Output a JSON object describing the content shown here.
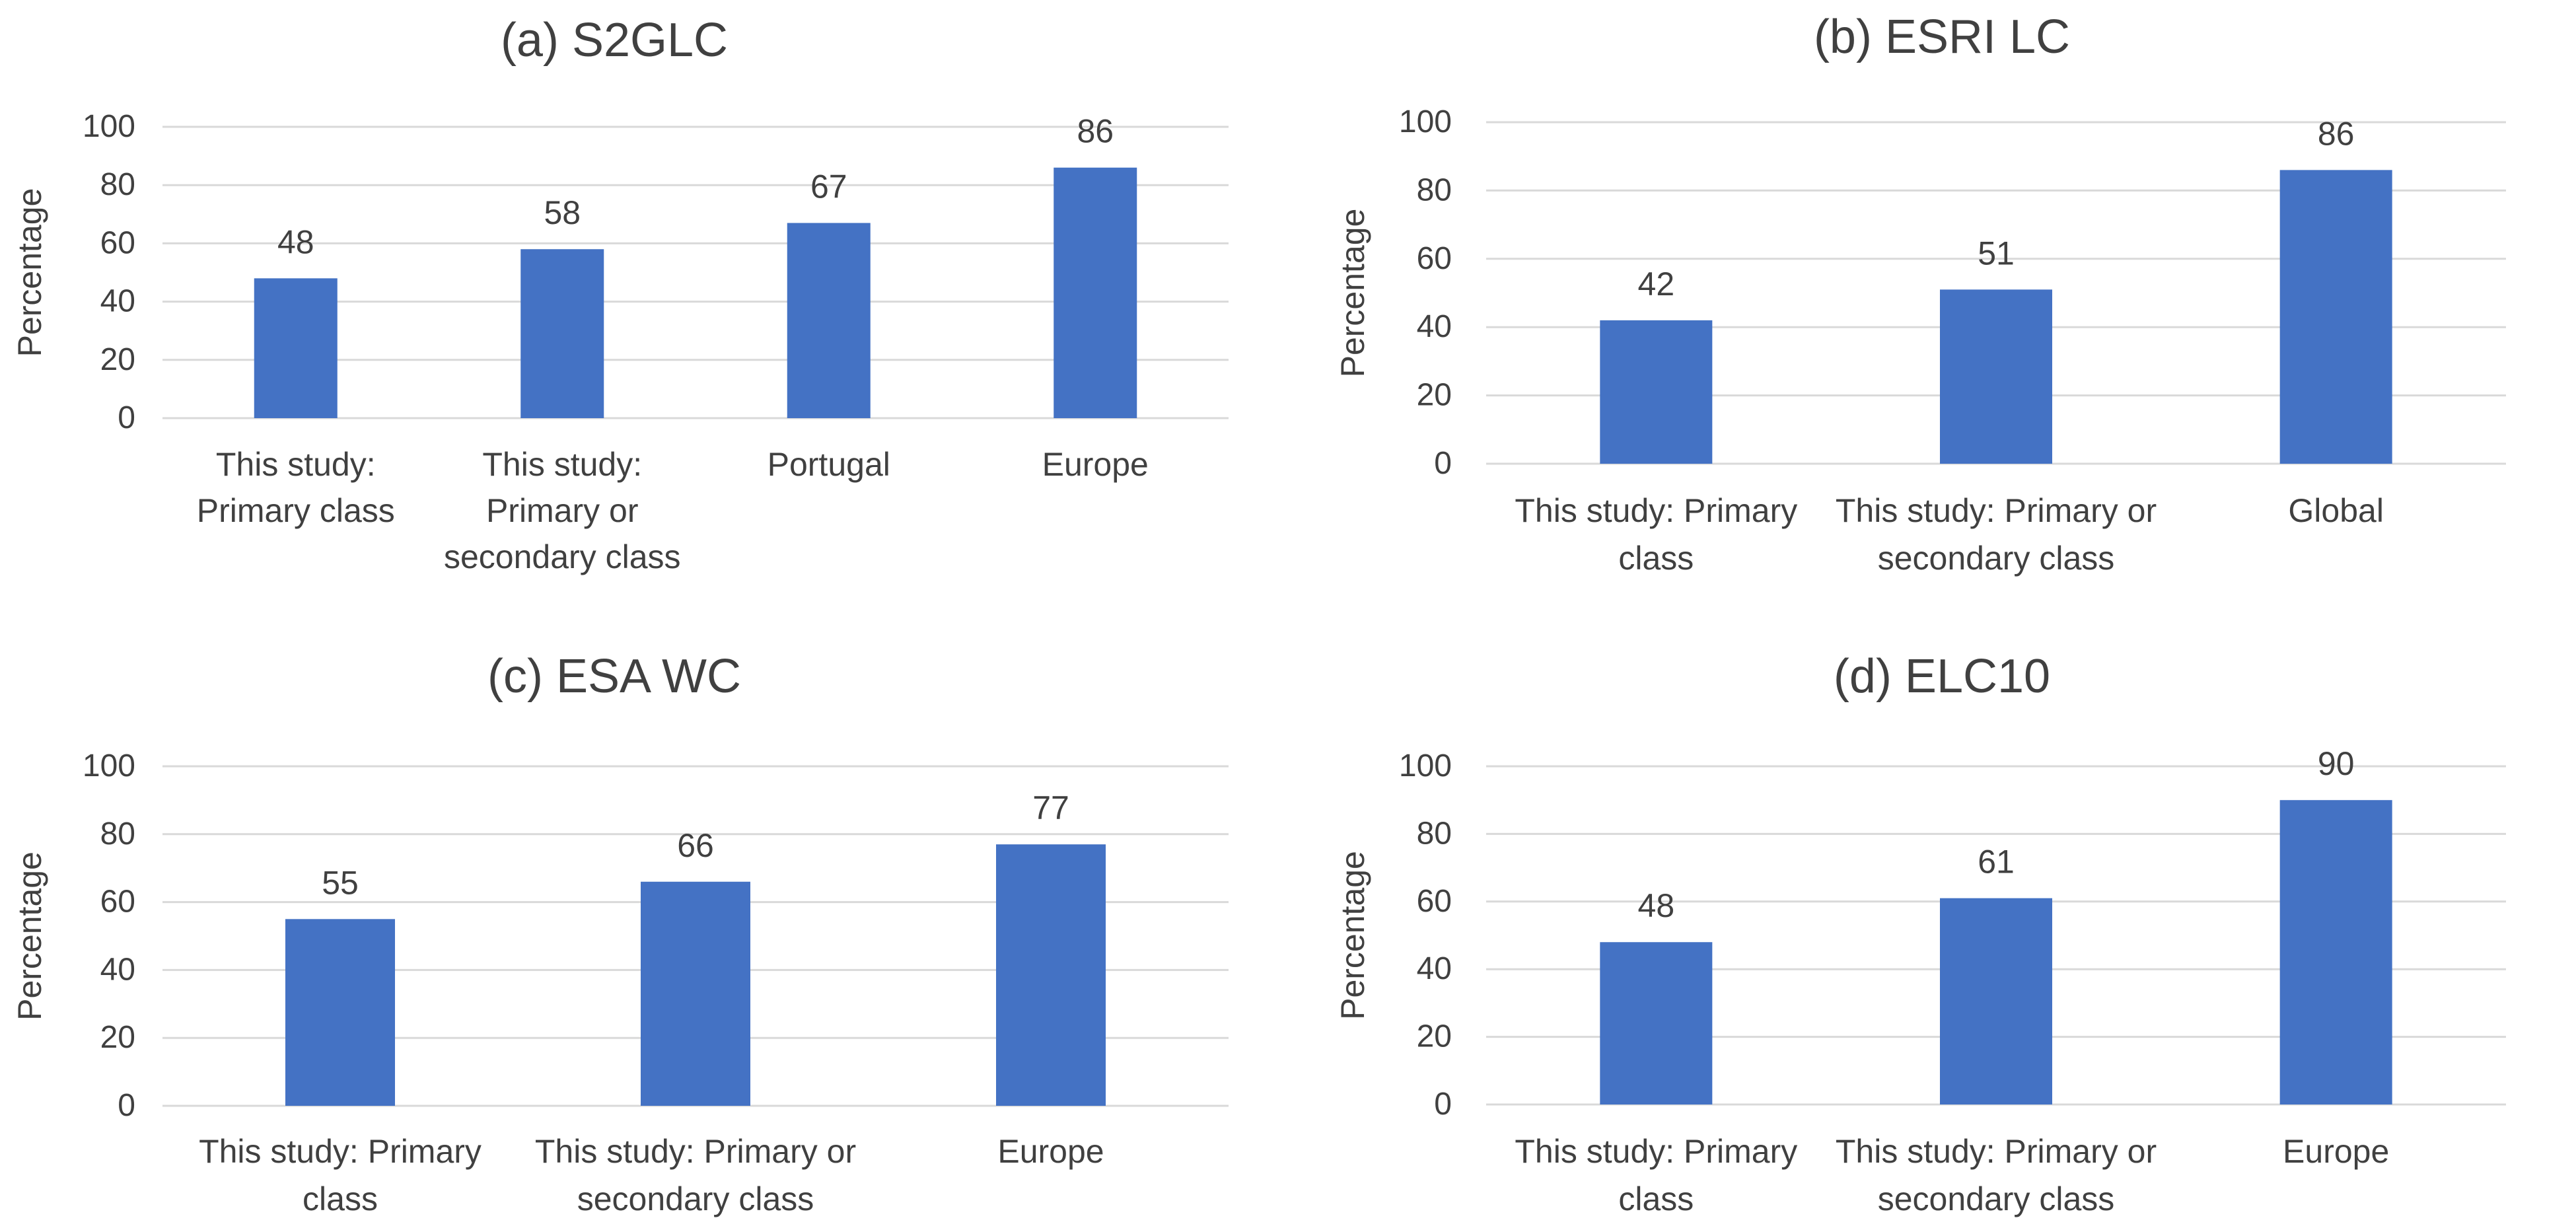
{
  "chart_data": [
    {
      "id": "a",
      "type": "bar",
      "title": "(a) S2GLC",
      "ylabel": "Percentage",
      "xlabel": "",
      "ylim": [
        0,
        100
      ],
      "yticks": [
        0,
        20,
        40,
        60,
        80,
        100
      ],
      "grid": true,
      "categories": [
        [
          "This study:",
          "Primary class"
        ],
        [
          "This study:",
          "Primary or",
          "secondary class"
        ],
        [
          "Portugal"
        ],
        [
          "Europe"
        ]
      ],
      "values": [
        48,
        58,
        67,
        86
      ],
      "data_labels": [
        "48",
        "58",
        "67",
        "86"
      ],
      "bar_color": "#4472C4"
    },
    {
      "id": "b",
      "type": "bar",
      "title": "(b) ESRI LC",
      "ylabel": "Percentage",
      "xlabel": "",
      "ylim": [
        0,
        100
      ],
      "yticks": [
        0,
        20,
        40,
        60,
        80,
        100
      ],
      "grid": true,
      "categories": [
        [
          "This study: Primary",
          "class"
        ],
        [
          "This study: Primary or",
          "secondary class"
        ],
        [
          "Global"
        ]
      ],
      "values": [
        42,
        51,
        86
      ],
      "data_labels": [
        "42",
        "51",
        "86"
      ],
      "bar_color": "#4472C4"
    },
    {
      "id": "c",
      "type": "bar",
      "title": "(c) ESA WC",
      "ylabel": "Percentage",
      "xlabel": "",
      "ylim": [
        0,
        100
      ],
      "yticks": [
        0,
        20,
        40,
        60,
        80,
        100
      ],
      "grid": true,
      "categories": [
        [
          "This study: Primary",
          "class"
        ],
        [
          "This study: Primary or",
          "secondary class"
        ],
        [
          "Europe"
        ]
      ],
      "values": [
        55,
        66,
        77
      ],
      "data_labels": [
        "55",
        "66",
        "77"
      ],
      "bar_color": "#4472C4"
    },
    {
      "id": "d",
      "type": "bar",
      "title": "(d) ELC10",
      "ylabel": "Percentage",
      "xlabel": "",
      "ylim": [
        0,
        100
      ],
      "yticks": [
        0,
        20,
        40,
        60,
        80,
        100
      ],
      "grid": true,
      "categories": [
        [
          "This study: Primary",
          "class"
        ],
        [
          "This study: Primary or",
          "secondary class"
        ],
        [
          "Europe"
        ]
      ],
      "values": [
        48,
        61,
        90
      ],
      "data_labels": [
        "48",
        "61",
        "90"
      ],
      "bar_color": "#4472C4"
    }
  ]
}
